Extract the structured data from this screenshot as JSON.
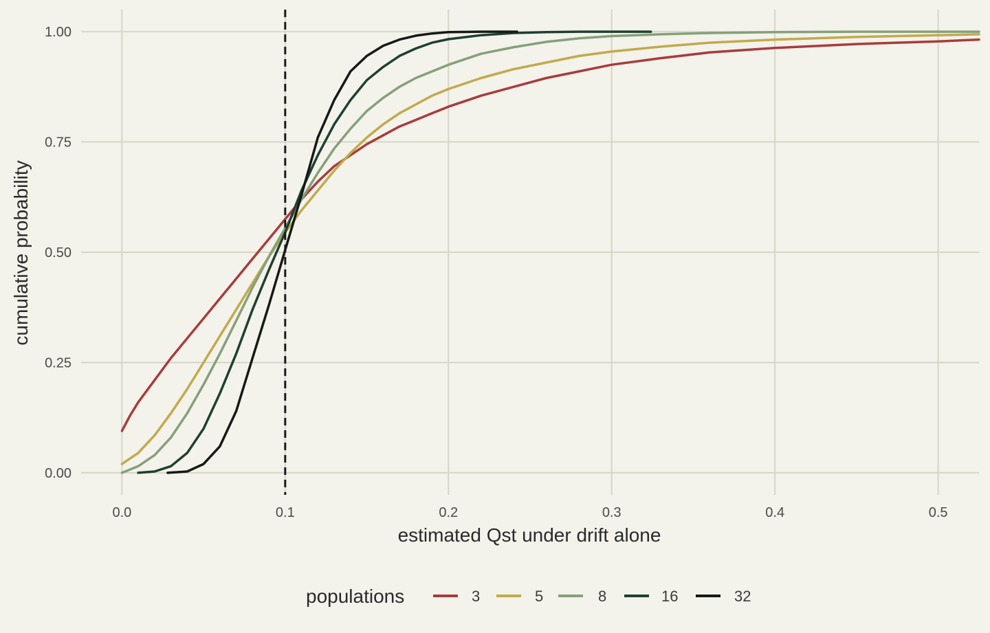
{
  "chart_data": {
    "type": "line",
    "title": "",
    "xlabel": "estimated Qst under drift alone",
    "ylabel": "cumulative probability",
    "xlim": [
      -0.025,
      0.525
    ],
    "ylim": [
      -0.05,
      1.05
    ],
    "x_ticks": [
      0.0,
      0.1,
      0.2,
      0.3,
      0.4,
      0.5
    ],
    "x_tick_labels": [
      "0.0",
      "0.1",
      "0.2",
      "0.3",
      "0.4",
      "0.5"
    ],
    "y_ticks": [
      0.0,
      0.25,
      0.5,
      0.75,
      1.0
    ],
    "y_tick_labels": [
      "0.00",
      "0.25",
      "0.50",
      "0.75",
      "1.00"
    ],
    "grid": true,
    "reference_line": {
      "x": 0.1,
      "style": "dashed",
      "color": "#1a1a1a"
    },
    "legend": {
      "title": "populations",
      "position": "bottom",
      "entries": [
        "3",
        "5",
        "8",
        "16",
        "32"
      ]
    },
    "series": [
      {
        "name": "3",
        "color": "#a83c3c",
        "points": [
          [
            0.0,
            0.095
          ],
          [
            0.005,
            0.13
          ],
          [
            0.01,
            0.16
          ],
          [
            0.02,
            0.21
          ],
          [
            0.03,
            0.26
          ],
          [
            0.04,
            0.305
          ],
          [
            0.05,
            0.35
          ],
          [
            0.06,
            0.395
          ],
          [
            0.07,
            0.44
          ],
          [
            0.08,
            0.485
          ],
          [
            0.09,
            0.53
          ],
          [
            0.1,
            0.575
          ],
          [
            0.11,
            0.62
          ],
          [
            0.12,
            0.66
          ],
          [
            0.13,
            0.695
          ],
          [
            0.14,
            0.72
          ],
          [
            0.15,
            0.745
          ],
          [
            0.16,
            0.765
          ],
          [
            0.17,
            0.785
          ],
          [
            0.18,
            0.8
          ],
          [
            0.19,
            0.815
          ],
          [
            0.2,
            0.83
          ],
          [
            0.22,
            0.855
          ],
          [
            0.24,
            0.875
          ],
          [
            0.26,
            0.895
          ],
          [
            0.28,
            0.91
          ],
          [
            0.3,
            0.925
          ],
          [
            0.33,
            0.94
          ],
          [
            0.36,
            0.953
          ],
          [
            0.4,
            0.963
          ],
          [
            0.45,
            0.972
          ],
          [
            0.5,
            0.978
          ],
          [
            0.525,
            0.982
          ]
        ]
      },
      {
        "name": "5",
        "color": "#c2aa4c",
        "points": [
          [
            0.0,
            0.02
          ],
          [
            0.01,
            0.045
          ],
          [
            0.02,
            0.085
          ],
          [
            0.03,
            0.135
          ],
          [
            0.04,
            0.19
          ],
          [
            0.05,
            0.25
          ],
          [
            0.06,
            0.31
          ],
          [
            0.07,
            0.37
          ],
          [
            0.08,
            0.43
          ],
          [
            0.09,
            0.49
          ],
          [
            0.1,
            0.545
          ],
          [
            0.11,
            0.595
          ],
          [
            0.12,
            0.64
          ],
          [
            0.13,
            0.685
          ],
          [
            0.14,
            0.725
          ],
          [
            0.15,
            0.76
          ],
          [
            0.16,
            0.79
          ],
          [
            0.17,
            0.815
          ],
          [
            0.18,
            0.835
          ],
          [
            0.19,
            0.855
          ],
          [
            0.2,
            0.87
          ],
          [
            0.22,
            0.895
          ],
          [
            0.24,
            0.915
          ],
          [
            0.26,
            0.93
          ],
          [
            0.28,
            0.945
          ],
          [
            0.3,
            0.955
          ],
          [
            0.33,
            0.966
          ],
          [
            0.36,
            0.975
          ],
          [
            0.4,
            0.982
          ],
          [
            0.45,
            0.988
          ],
          [
            0.5,
            0.992
          ],
          [
            0.525,
            0.994
          ]
        ]
      },
      {
        "name": "8",
        "color": "#86a07a",
        "points": [
          [
            0.0,
            0.0
          ],
          [
            0.01,
            0.015
          ],
          [
            0.02,
            0.04
          ],
          [
            0.03,
            0.08
          ],
          [
            0.04,
            0.135
          ],
          [
            0.05,
            0.2
          ],
          [
            0.06,
            0.27
          ],
          [
            0.07,
            0.345
          ],
          [
            0.08,
            0.42
          ],
          [
            0.09,
            0.49
          ],
          [
            0.1,
            0.555
          ],
          [
            0.11,
            0.62
          ],
          [
            0.12,
            0.68
          ],
          [
            0.13,
            0.735
          ],
          [
            0.14,
            0.78
          ],
          [
            0.15,
            0.82
          ],
          [
            0.16,
            0.85
          ],
          [
            0.17,
            0.875
          ],
          [
            0.18,
            0.895
          ],
          [
            0.19,
            0.91
          ],
          [
            0.2,
            0.925
          ],
          [
            0.22,
            0.95
          ],
          [
            0.24,
            0.965
          ],
          [
            0.26,
            0.977
          ],
          [
            0.28,
            0.985
          ],
          [
            0.3,
            0.99
          ],
          [
            0.33,
            0.994
          ],
          [
            0.36,
            0.997
          ],
          [
            0.4,
            0.999
          ],
          [
            0.45,
            1.0
          ],
          [
            0.525,
            1.0
          ]
        ]
      },
      {
        "name": "16",
        "color": "#1f4030",
        "points": [
          [
            0.01,
            0.0
          ],
          [
            0.02,
            0.003
          ],
          [
            0.03,
            0.015
          ],
          [
            0.04,
            0.045
          ],
          [
            0.05,
            0.1
          ],
          [
            0.06,
            0.18
          ],
          [
            0.07,
            0.27
          ],
          [
            0.08,
            0.37
          ],
          [
            0.09,
            0.46
          ],
          [
            0.1,
            0.545
          ],
          [
            0.11,
            0.64
          ],
          [
            0.12,
            0.72
          ],
          [
            0.13,
            0.79
          ],
          [
            0.14,
            0.845
          ],
          [
            0.15,
            0.89
          ],
          [
            0.16,
            0.92
          ],
          [
            0.17,
            0.945
          ],
          [
            0.18,
            0.962
          ],
          [
            0.19,
            0.975
          ],
          [
            0.2,
            0.983
          ],
          [
            0.22,
            0.992
          ],
          [
            0.24,
            0.997
          ],
          [
            0.26,
            0.999
          ],
          [
            0.28,
            1.0
          ],
          [
            0.324,
            1.0
          ]
        ]
      },
      {
        "name": "32",
        "color": "#151a15",
        "points": [
          [
            0.028,
            0.0
          ],
          [
            0.04,
            0.003
          ],
          [
            0.05,
            0.02
          ],
          [
            0.06,
            0.06
          ],
          [
            0.07,
            0.14
          ],
          [
            0.08,
            0.26
          ],
          [
            0.09,
            0.38
          ],
          [
            0.1,
            0.505
          ],
          [
            0.11,
            0.63
          ],
          [
            0.12,
            0.76
          ],
          [
            0.13,
            0.845
          ],
          [
            0.14,
            0.91
          ],
          [
            0.15,
            0.945
          ],
          [
            0.16,
            0.968
          ],
          [
            0.17,
            0.982
          ],
          [
            0.18,
            0.991
          ],
          [
            0.19,
            0.996
          ],
          [
            0.2,
            0.999
          ],
          [
            0.22,
            1.0
          ],
          [
            0.242,
            1.0
          ]
        ]
      }
    ]
  }
}
